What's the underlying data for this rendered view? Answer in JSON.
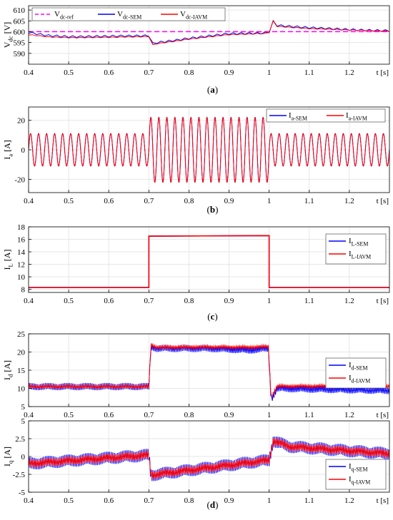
{
  "colors": {
    "red": "#ff0000",
    "blue": "#0000ff",
    "magenta": "#ff00ff",
    "axis": "#000000",
    "grid": "#e6e6e6"
  },
  "t_unit_label": "t [s]",
  "x_ticks": [
    "0.4",
    "0.5",
    "0.6",
    "0.7",
    "0.8",
    "0.9",
    "1",
    "1.1",
    "1.2"
  ],
  "chart_data": [
    {
      "id": "vdc",
      "type": "line",
      "caption": "(a)",
      "ylabel": {
        "main": "V",
        "sub": "dc",
        "unit": " [V]"
      },
      "xlim": [
        0.4,
        1.3
      ],
      "ylim": [
        585,
        612
      ],
      "yticks": [
        "610",
        "605",
        "600",
        "595",
        "590"
      ],
      "x_step": 0.01,
      "legend": {
        "position": "top-left",
        "layout": "horizontal"
      },
      "series": [
        {
          "name": {
            "main": "V",
            "sub": "dc-ref"
          },
          "color": "#ff00ff",
          "dash": true,
          "x": [
            0.4,
            1.3
          ],
          "y": [
            600,
            600
          ]
        },
        {
          "name": {
            "main": "V",
            "sub": "dc-SEM"
          },
          "color": "#0000ff",
          "ripple": 0.5,
          "x": [
            0.4,
            0.45,
            0.5,
            0.6,
            0.69,
            0.7,
            0.705,
            0.72,
            0.8,
            0.9,
            0.99,
            1.0,
            1.005,
            1.02,
            1.1,
            1.2,
            1.3
          ],
          "y": [
            599.5,
            598.2,
            597.8,
            597.9,
            598.1,
            598.2,
            594.2,
            595.0,
            597.0,
            599.0,
            599.5,
            600,
            605.8,
            603.0,
            601.8,
            601.0,
            600.5
          ]
        },
        {
          "name": {
            "main": "V",
            "sub": "dc-IAVM"
          },
          "color": "#ff0000",
          "ripple": 0.2,
          "x": [
            0.4,
            0.45,
            0.5,
            0.6,
            0.69,
            0.7,
            0.705,
            0.72,
            0.8,
            0.9,
            0.99,
            1.0,
            1.005,
            1.02,
            1.1,
            1.2,
            1.3
          ],
          "y": [
            598.6,
            597.6,
            597.3,
            597.4,
            597.7,
            597.8,
            593.6,
            594.5,
            596.6,
            598.6,
            599.2,
            599.8,
            606.0,
            602.5,
            601.4,
            600.8,
            600.3
          ]
        }
      ]
    },
    {
      "id": "ia",
      "type": "line",
      "caption": "(b)",
      "ylabel": {
        "main": "I",
        "sub": "a",
        "unit": " [A]"
      },
      "xlim": [
        0.4,
        1.3
      ],
      "ylim": [
        -29,
        29
      ],
      "yticks": [
        "20",
        "0",
        "-20"
      ],
      "legend": {
        "position": "top-right",
        "layout": "horizontal"
      },
      "sine": {
        "freq_hz": 50,
        "amplitudes": [
          [
            0.4,
            0.7,
            11
          ],
          [
            0.7,
            1.0,
            22
          ],
          [
            1.0,
            1.3,
            11
          ]
        ]
      },
      "series": [
        {
          "name": {
            "main": "I",
            "sub": "a-SEM"
          },
          "color": "#0000ff"
        },
        {
          "name": {
            "main": "I",
            "sub": "a-IAVM"
          },
          "color": "#ff0000"
        }
      ]
    },
    {
      "id": "il",
      "type": "line",
      "caption": "(c)",
      "ylabel": {
        "main": "I",
        "sub": "L",
        "unit": " [A]"
      },
      "xlim": [
        0.4,
        1.3
      ],
      "ylim": [
        7.5,
        18
      ],
      "yticks": [
        "18",
        "16",
        "14",
        "12",
        "10",
        "8"
      ],
      "legend": {
        "position": "top-right",
        "layout": "vertical"
      },
      "series": [
        {
          "name": {
            "main": "I",
            "sub": "L-SEM"
          },
          "color": "#0000ff",
          "x": [
            0.4,
            0.7,
            0.7,
            1.0,
            1.0,
            1.3
          ],
          "y": [
            8.3,
            8.3,
            16.5,
            16.6,
            8.3,
            8.3
          ]
        },
        {
          "name": {
            "main": "I",
            "sub": "L-IAVM"
          },
          "color": "#ff0000",
          "x": [
            0.4,
            0.7,
            0.7,
            1.0,
            1.0,
            1.3
          ],
          "y": [
            8.3,
            8.3,
            16.5,
            16.6,
            8.3,
            8.3
          ]
        }
      ]
    },
    {
      "id": "id",
      "type": "line",
      "caption": "",
      "ylabel": {
        "main": "I",
        "sub": "d",
        "unit": " [A]"
      },
      "xlim": [
        0.4,
        1.3
      ],
      "ylim": [
        5,
        25
      ],
      "yticks": [
        "25",
        "20",
        "15",
        "10",
        "5"
      ],
      "x_step": 0.002,
      "legend": {
        "position": "right",
        "layout": "vertical"
      },
      "series": [
        {
          "name": {
            "main": "I",
            "sub": "d-SEM"
          },
          "color": "#0000ff",
          "ripple": 1.0,
          "x": [
            0.4,
            0.7,
            0.705,
            0.72,
            0.85,
            0.95,
            0.998,
            1.005,
            1.02,
            1.1,
            1.2,
            1.3
          ],
          "y": [
            10.5,
            10.5,
            21.5,
            21.0,
            21.0,
            20.5,
            21.0,
            7.0,
            10.0,
            9.8,
            9.6,
            9.4
          ]
        },
        {
          "name": {
            "main": "I",
            "sub": "d-IAVM"
          },
          "color": "#ff0000",
          "ripple": 0.5,
          "x": [
            0.4,
            0.7,
            0.705,
            0.72,
            0.85,
            0.95,
            0.998,
            1.005,
            1.02,
            1.1,
            1.2,
            1.3
          ],
          "y": [
            10.5,
            10.5,
            22.0,
            21.3,
            21.4,
            21.3,
            21.5,
            7.5,
            10.6,
            10.6,
            10.6,
            10.6
          ]
        }
      ]
    },
    {
      "id": "iq",
      "type": "line",
      "caption": "(d)",
      "ylabel": {
        "main": "I",
        "sub": "q",
        "unit": " [A]"
      },
      "xlim": [
        0.4,
        1.3
      ],
      "ylim": [
        -5,
        5
      ],
      "yticks": [
        "5",
        "2.5",
        "0",
        "-2.5",
        "-5"
      ],
      "x_step": 0.002,
      "legend": {
        "position": "bottom-right",
        "layout": "vertical"
      },
      "series": [
        {
          "name": {
            "main": "I",
            "sub": "q-SEM"
          },
          "color": "#0000ff",
          "ripple": 0.9,
          "x": [
            0.4,
            0.7,
            0.705,
            1.0,
            1.01,
            1.05,
            1.3
          ],
          "y": [
            -1.0,
            0.2,
            -2.6,
            -0.5,
            2.2,
            1.4,
            0.4
          ]
        },
        {
          "name": {
            "main": "I",
            "sub": "q-IAVM"
          },
          "color": "#ff0000",
          "ripple": 0.6,
          "x": [
            0.4,
            0.7,
            0.705,
            1.0,
            1.01,
            1.05,
            1.3
          ],
          "y": [
            -1.0,
            0.2,
            -2.6,
            -0.5,
            2.2,
            1.4,
            0.4
          ]
        }
      ]
    }
  ]
}
